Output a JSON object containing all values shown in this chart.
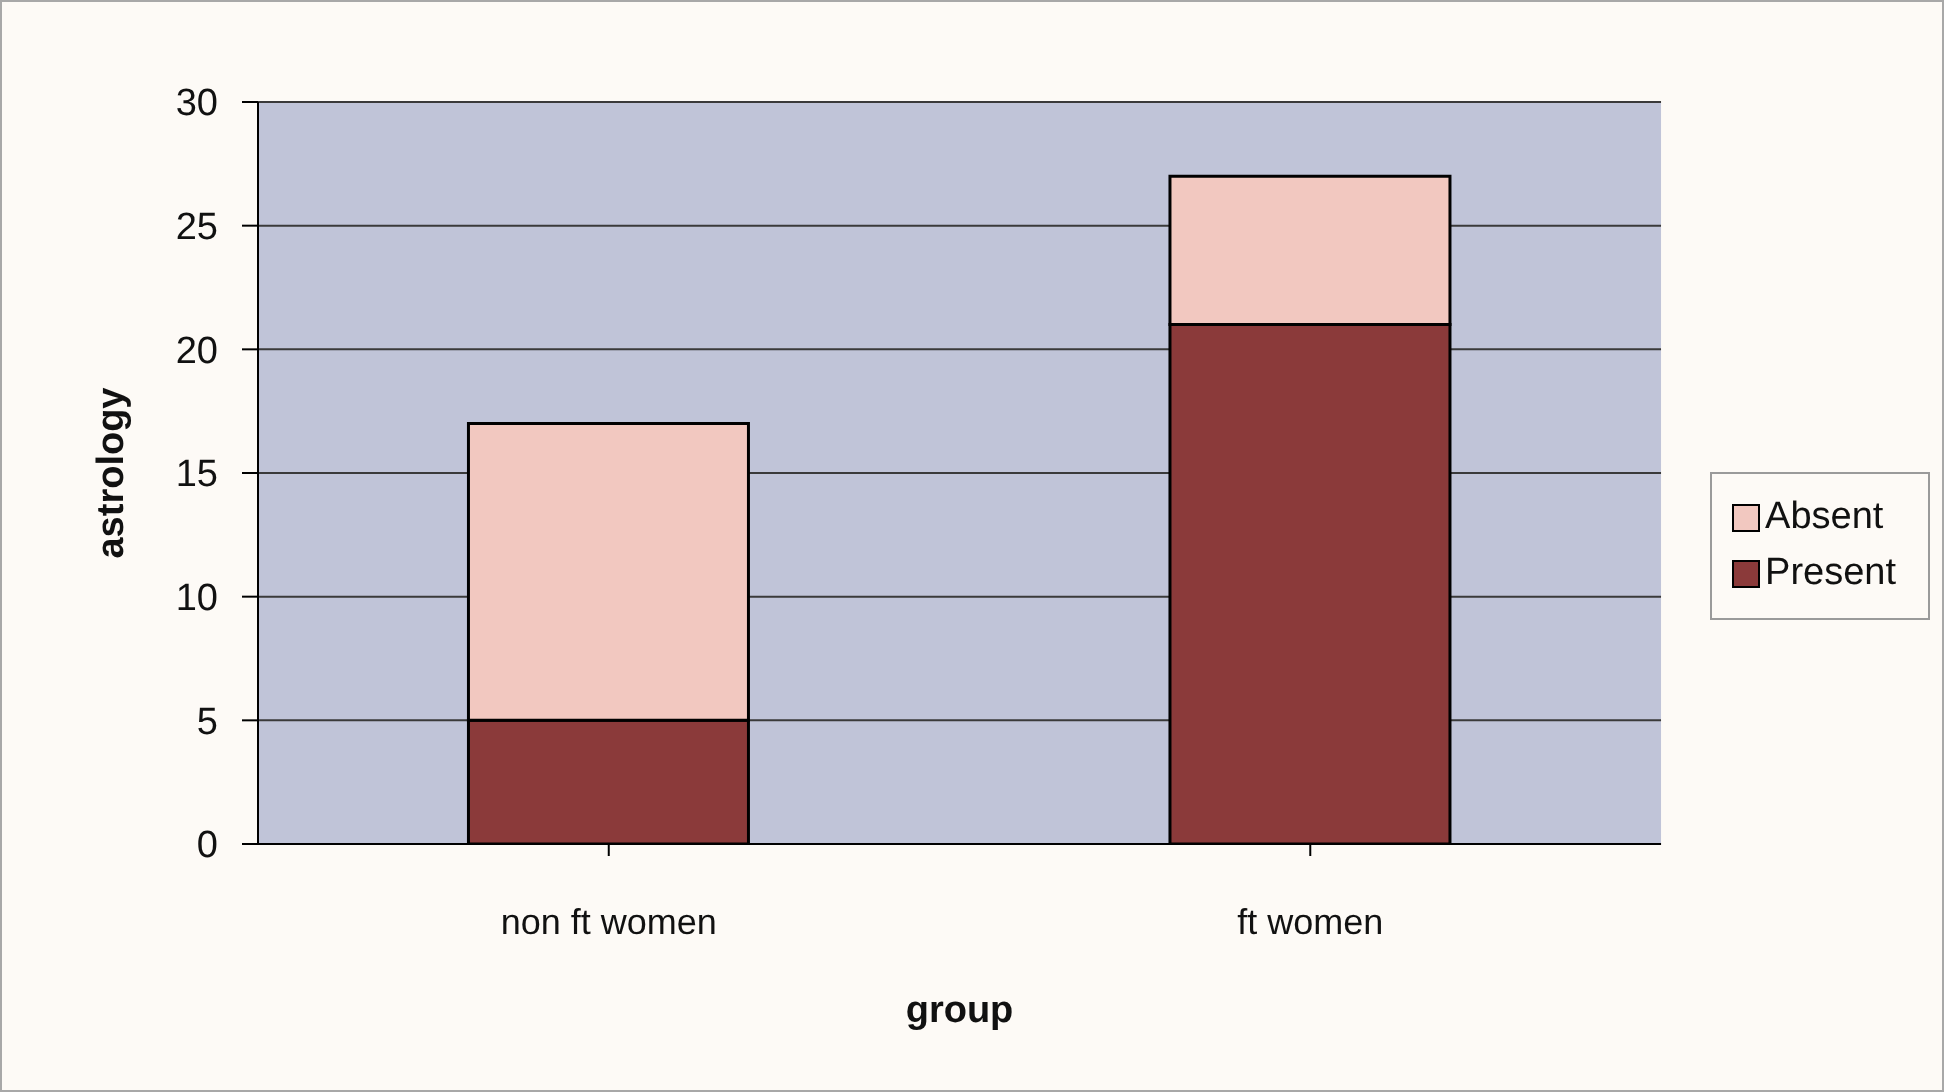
{
  "chart_data": {
    "type": "bar",
    "categories": [
      "non ft women",
      "ft women"
    ],
    "series": [
      {
        "name": "Present",
        "color": "#8b3a3a",
        "values": [
          5,
          21
        ]
      },
      {
        "name": "Absent",
        "color": "#f2c8c0",
        "values": [
          12,
          6
        ]
      }
    ],
    "stacked": true,
    "xlabel": "group",
    "ylabel": "astrology",
    "ylim": [
      0,
      30
    ],
    "yticks": [
      0,
      5,
      10,
      15,
      20,
      25,
      30
    ],
    "grid": "y",
    "legend": "right"
  }
}
